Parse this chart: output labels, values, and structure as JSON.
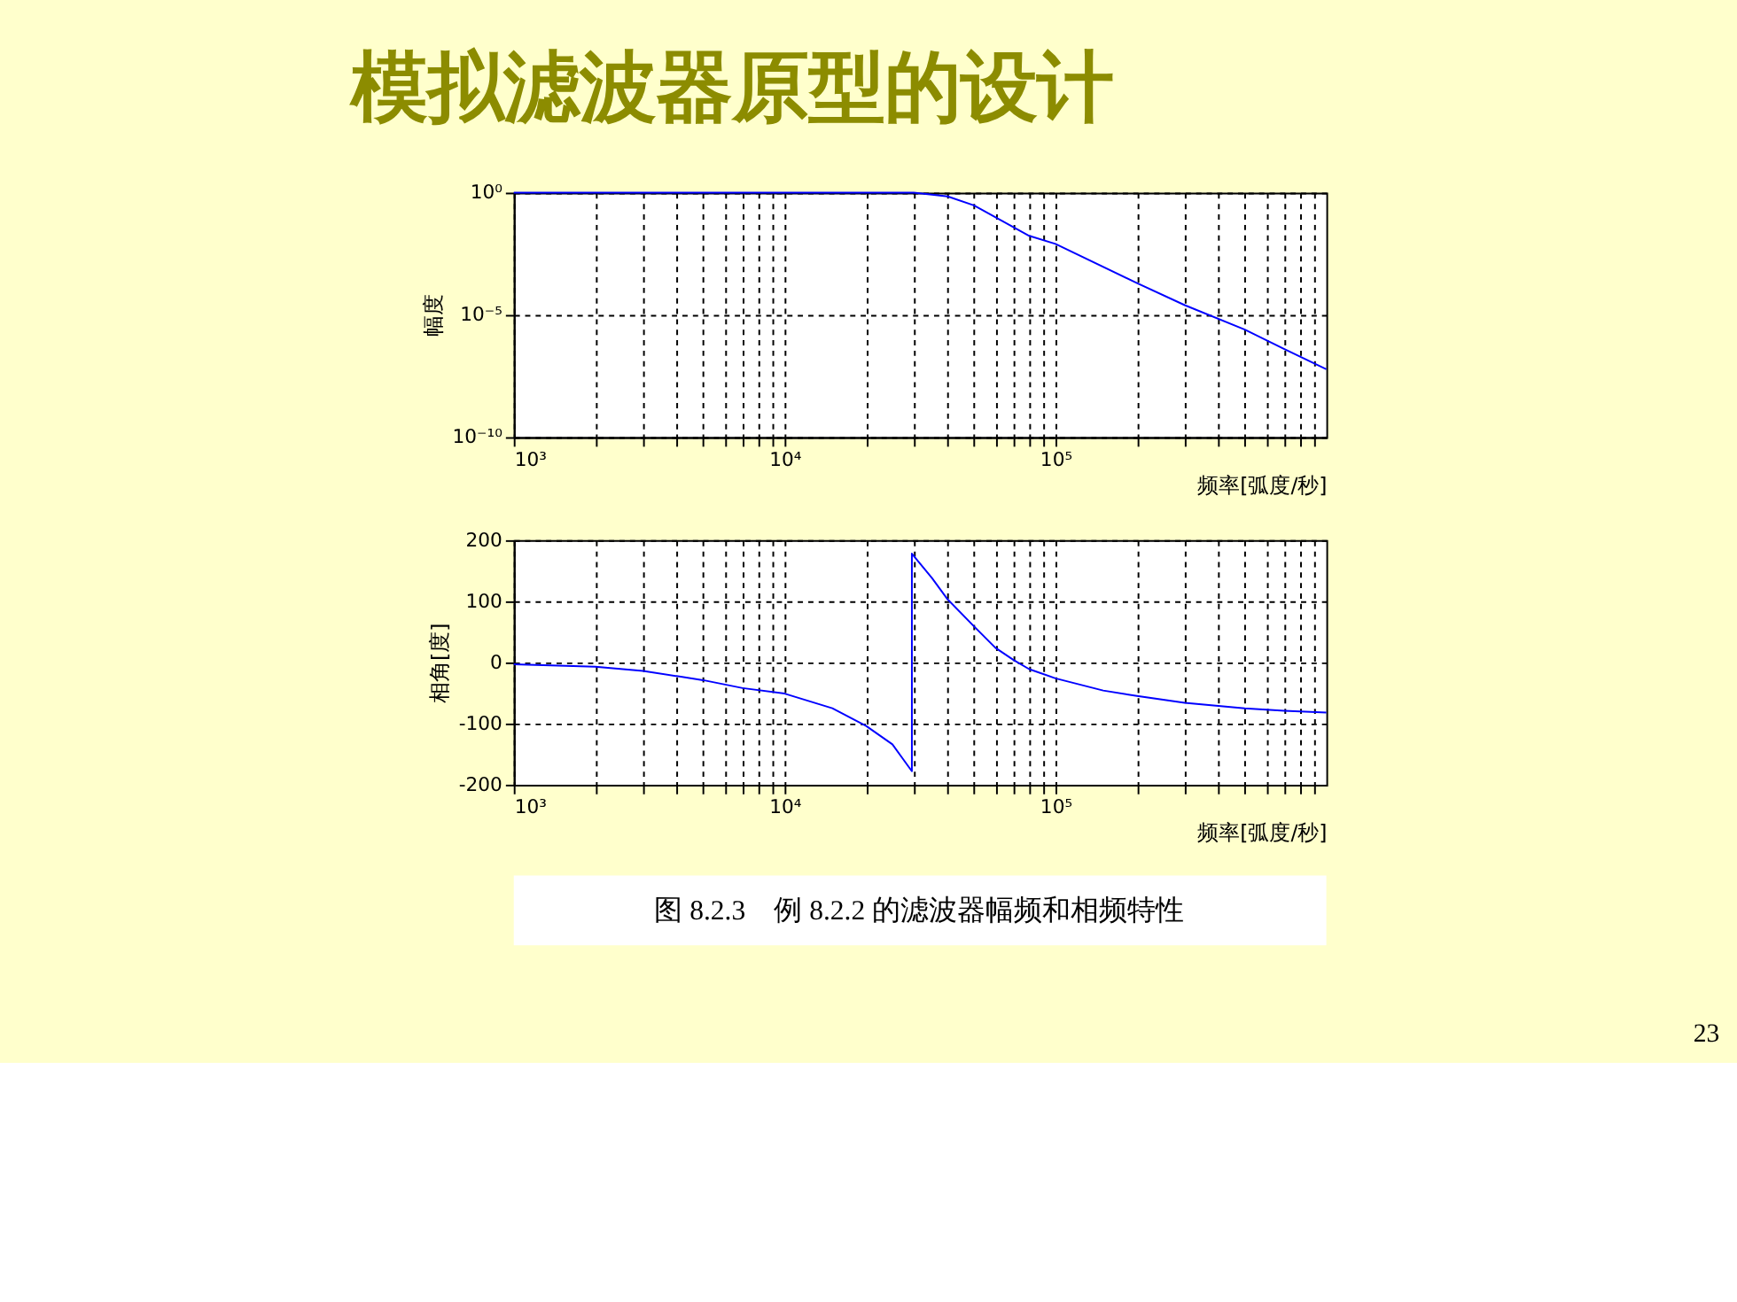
{
  "chart_data": [
    {
      "type": "line",
      "title": "模拟滤波器原型的设计",
      "ylabel": "幅度",
      "xlabel": "频率[弧度/秒]",
      "log": "xy",
      "grid": true,
      "marker": "none",
      "line_style": "solid",
      "color": "#0000ff",
      "x": [
        1000,
        2000,
        5000,
        10000,
        20000,
        30000,
        40000,
        50000,
        80000,
        100000,
        200000,
        300000,
        500000,
        700000,
        1000000
      ],
      "values": [
        1,
        1,
        1,
        1,
        1,
        1,
        0.7,
        0.3,
        0.017,
        0.008,
        0.0002,
        2.5e-05,
        2.5e-06,
        4e-07,
        6e-08
      ],
      "xlim": [
        1000,
        1000000
      ],
      "xticks": [
        {
          "value": 1000,
          "label": "10³"
        },
        {
          "value": 2000,
          "label": null
        },
        {
          "value": 3000,
          "label": null
        },
        {
          "value": 4000,
          "label": null
        },
        {
          "value": 5000,
          "label": null
        },
        {
          "value": 6000,
          "label": null
        },
        {
          "value": 7000,
          "label": null
        },
        {
          "value": 8000,
          "label": null
        },
        {
          "value": 9000,
          "label": null
        },
        {
          "value": 10000,
          "label": "10⁴"
        },
        {
          "value": 20000,
          "label": null
        },
        {
          "value": 30000,
          "label": null
        },
        {
          "value": 40000,
          "label": null
        },
        {
          "value": 50000,
          "label": null
        },
        {
          "value": 60000,
          "label": null
        },
        {
          "value": 70000,
          "label": null
        },
        {
          "value": 80000,
          "label": null
        },
        {
          "value": 90000,
          "label": null
        },
        {
          "value": 100000,
          "label": "10⁵"
        },
        {
          "value": 200000,
          "label": null
        },
        {
          "value": 300000,
          "label": null
        },
        {
          "value": 400000,
          "label": null
        },
        {
          "value": 500000,
          "label": null
        },
        {
          "value": 600000,
          "label": null
        },
        {
          "value": 700000,
          "label": null
        },
        {
          "value": 800000,
          "label": null
        },
        {
          "value": 900000,
          "label": null
        }
      ],
      "ylim": [
        1e-10,
        1
      ],
      "yticks": [
        {
          "value": 1e-10,
          "label": "10⁻¹⁰"
        },
        {
          "value": 1e-05,
          "label": "10⁻⁵"
        },
        {
          "value": 1,
          "label": "10⁰"
        }
      ]
    },
    {
      "type": "line",
      "ylabel": "相角[度]",
      "xlabel": "频率[弧度/秒]",
      "log": "x",
      "grid": true,
      "marker": "none",
      "line_style": "solid",
      "color": "#0000ff",
      "x": [
        1000,
        2000,
        3000,
        5000,
        7000,
        10000,
        15000,
        20000,
        25000,
        29500,
        29500,
        35000,
        40000,
        50000,
        60000,
        70000,
        80000,
        100000,
        150000,
        200000,
        300000,
        500000,
        700000,
        1000000
      ],
      "values": [
        -3,
        -7,
        -14,
        -29,
        -42,
        -51,
        -75,
        -104,
        -134,
        -178,
        178,
        138,
        103,
        59,
        24,
        4,
        -11,
        -26,
        -46,
        -55,
        -66,
        -75,
        -79,
        -82
      ],
      "xlim": [
        1000,
        1000000
      ],
      "xticks": [
        {
          "value": 1000,
          "label": "10³"
        },
        {
          "value": 2000,
          "label": null
        },
        {
          "value": 3000,
          "label": null
        },
        {
          "value": 4000,
          "label": null
        },
        {
          "value": 5000,
          "label": null
        },
        {
          "value": 6000,
          "label": null
        },
        {
          "value": 7000,
          "label": null
        },
        {
          "value": 8000,
          "label": null
        },
        {
          "value": 9000,
          "label": null
        },
        {
          "value": 10000,
          "label": "10⁴"
        },
        {
          "value": 20000,
          "label": null
        },
        {
          "value": 30000,
          "label": null
        },
        {
          "value": 40000,
          "label": null
        },
        {
          "value": 50000,
          "label": null
        },
        {
          "value": 60000,
          "label": null
        },
        {
          "value": 70000,
          "label": null
        },
        {
          "value": 80000,
          "label": null
        },
        {
          "value": 90000,
          "label": null
        },
        {
          "value": 100000,
          "label": "10⁵"
        },
        {
          "value": 200000,
          "label": null
        },
        {
          "value": 300000,
          "label": null
        },
        {
          "value": 400000,
          "label": null
        },
        {
          "value": 500000,
          "label": null
        },
        {
          "value": 600000,
          "label": null
        },
        {
          "value": 700000,
          "label": null
        },
        {
          "value": 800000,
          "label": null
        },
        {
          "value": 900000,
          "label": null
        }
      ],
      "ylim": [
        -200,
        200
      ],
      "yticks": [
        -200,
        -100,
        0,
        100,
        200
      ],
      "annotations": [
        "图 8.2.3　例 8.2.2 的滤波器幅频和相频特性",
        "23"
      ]
    }
  ]
}
